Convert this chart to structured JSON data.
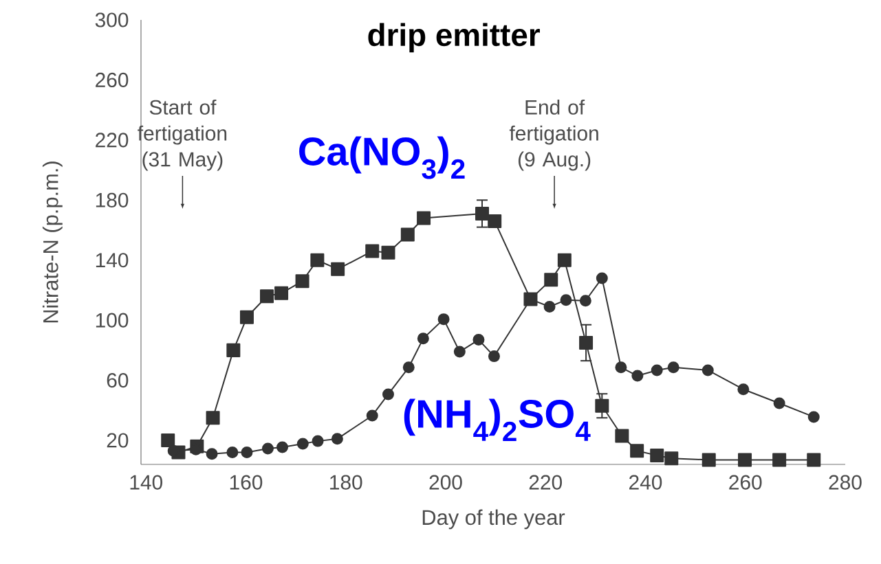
{
  "chart_data": {
    "type": "line",
    "title": "drip emitter",
    "xlabel": "Day of the year",
    "ylabel": "Nitrate-N (p.p.m.)",
    "xlim": [
      139,
      280
    ],
    "xticks": [
      140,
      160,
      180,
      200,
      220,
      240,
      260,
      280
    ],
    "ylim": [
      4,
      300
    ],
    "yticks": [
      20,
      60,
      100,
      140,
      180,
      220,
      260,
      300
    ],
    "grid": false,
    "line_style": "solid",
    "annotations": [
      "Start of fertigation (31 May)",
      "End of fertigation (9 Aug.)"
    ],
    "series": [
      {
        "name": "Ca(NO$_{3}$)$_{2}$",
        "color": "#333333",
        "marker": "square",
        "x": [
          144.4,
          146.5,
          150.2,
          153.4,
          157.5,
          160.2,
          164.2,
          167.1,
          171.3,
          174.3,
          178.4,
          185.3,
          188.5,
          192.4,
          195.6,
          207.3,
          209.8,
          217,
          221.1,
          223.8,
          228.1,
          231.3,
          235.3,
          238.3,
          242.3,
          245.2,
          252.7,
          259.9,
          266.8,
          273.7
        ],
        "values": [
          20,
          12,
          16,
          35,
          80,
          102,
          116,
          118,
          126,
          140,
          134,
          146,
          145,
          157,
          168,
          171,
          166,
          114,
          127,
          140,
          85,
          43,
          23,
          13,
          10,
          8,
          7,
          7,
          7,
          7
        ],
        "errors": [
          null,
          null,
          null,
          null,
          null,
          null,
          null,
          null,
          null,
          null,
          null,
          null,
          null,
          null,
          null,
          9,
          null,
          null,
          null,
          null,
          12,
          8,
          null,
          null,
          null,
          null,
          null,
          null,
          null,
          null
        ]
      },
      {
        "name": "(NH$_{4}$)$_{2}$SO$_{4}$",
        "color": "#333333",
        "marker": "circle",
        "x": [
          145.5,
          150,
          153.2,
          157.3,
          160.2,
          164.4,
          167.3,
          171.4,
          174.4,
          178.3,
          185.3,
          188.5,
          192.6,
          195.5,
          199.6,
          202.8,
          206.6,
          209.7,
          217,
          220.8,
          224.1,
          228,
          231.3,
          235.1,
          238.4,
          242.3,
          245.6,
          252.5,
          259.6,
          266.8,
          273.7
        ],
        "values": [
          13,
          14,
          11,
          12,
          12,
          14.5,
          15.4,
          17.7,
          19.5,
          21,
          36.5,
          50.7,
          68.6,
          87.8,
          100.7,
          79,
          87,
          76,
          114,
          109,
          113.5,
          113,
          128,
          68.6,
          63,
          66.7,
          68.6,
          66.7,
          54,
          44.7,
          35.6
        ]
      }
    ]
  }
}
